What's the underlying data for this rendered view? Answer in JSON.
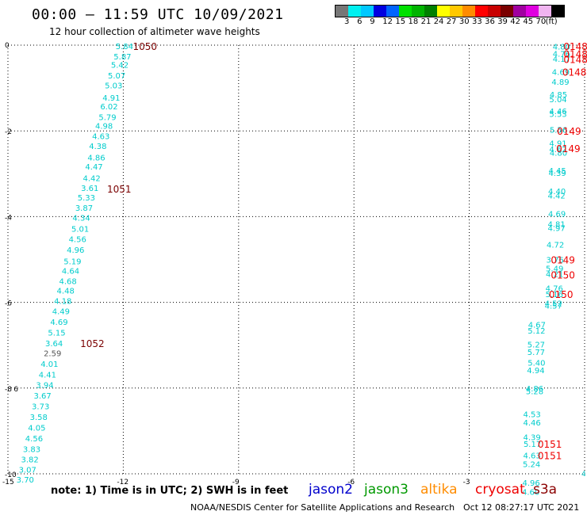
{
  "header": {
    "title": "00:00 – 11:59 UTC 10/09/2021",
    "subtitle": "12 hour collection of altimeter wave heights"
  },
  "scale": {
    "colors": [
      "#777777",
      "#00f0f0",
      "#00c8ff",
      "#0000e0",
      "#0064ff",
      "#00e000",
      "#00b400",
      "#008000",
      "#ffff00",
      "#ffc800",
      "#ff8c00",
      "#ff0000",
      "#c80000",
      "#7a0000",
      "#a000a0",
      "#e000e0",
      "#f0b4f0",
      "#000000"
    ],
    "labels": [
      "3",
      "6",
      "9",
      "12",
      "15",
      "18",
      "21",
      "24",
      "27",
      "30",
      "33",
      "36",
      "39",
      "42",
      "45",
      "70",
      "(ft)"
    ]
  },
  "note": "note:  1) Time is in UTC;  2) SWH is in feet",
  "legend": [
    {
      "name": "jason2",
      "color": "#0000cc"
    },
    {
      "name": "jason3",
      "color": "#009900"
    },
    {
      "name": "altika",
      "color": "#ff8c00"
    },
    {
      "name": "cryosat",
      "color": "#ee0000"
    },
    {
      "name": "s3a",
      "color": "#8b0000"
    }
  ],
  "footer": {
    "credit": "NOAA/NESDIS Center for Satellite Applications and Research",
    "timestamp": "Oct 12 08:27:17 UTC 2021"
  },
  "chart_data": {
    "type": "scatter",
    "xlim": [
      -15,
      0
    ],
    "ylim": [
      -10,
      0
    ],
    "xticks": [
      "-15",
      "-12",
      "-9",
      "-6",
      "-3"
    ],
    "yticks": [
      "0",
      "-2",
      "-4",
      "-6",
      "-8",
      "-10"
    ],
    "edge_label": "-3",
    "grid": true,
    "colors": {
      "wave": "#00cccc",
      "wave_low": "#555555",
      "time_s3a": "#7a0000",
      "time_cryosat": "#ee0000"
    },
    "track1": {
      "labels": [
        "5.84",
        "5.87",
        "5.42",
        "5.07",
        "5.03",
        "4.91",
        "6.02",
        "5.79",
        "4.98",
        "4.63",
        "4.38",
        "4.86",
        "4.47",
        "4.42",
        "3.61",
        "5.33",
        "3.87",
        "4.34",
        "5.01",
        "4.56",
        "4.96",
        "5.19",
        "4.64",
        "4.68",
        "4.48",
        "4.18",
        "4.49",
        "4.69",
        "5.15",
        "3.64",
        "2.59",
        "4.01",
        "4.41",
        "3.94",
        "3.67",
        "3.73",
        "3.58",
        "4.05",
        "4.56",
        "3.83",
        "3.82",
        "3.07",
        "3.70"
      ],
      "x": [
        -12.2,
        -12.25,
        -12.32,
        -12.4,
        -12.48,
        -12.54,
        -12.6,
        -12.64,
        -12.73,
        -12.81,
        -12.89,
        -12.93,
        -12.99,
        -13.05,
        -13.1,
        -13.19,
        -13.25,
        -13.32,
        -13.35,
        -13.42,
        -13.47,
        -13.55,
        -13.6,
        -13.67,
        -13.73,
        -13.8,
        -13.85,
        -13.9,
        -13.96,
        -14.03,
        -14.07,
        -14.15,
        -14.2,
        -14.27,
        -14.33,
        -14.38,
        -14.43,
        -14.48,
        -14.55,
        -14.61,
        -14.66,
        -14.72,
        -14.78
      ],
      "y": [
        -0.02,
        -0.26,
        -0.45,
        -0.7,
        -0.93,
        -1.22,
        -1.42,
        -1.67,
        -1.88,
        -2.12,
        -2.35,
        -2.62,
        -2.83,
        -3.1,
        -3.33,
        -3.55,
        -3.79,
        -4.02,
        -4.28,
        -4.52,
        -4.77,
        -5.04,
        -5.26,
        -5.5,
        -5.72,
        -5.96,
        -6.2,
        -6.45,
        -6.7,
        -6.95,
        -7.18,
        -7.43,
        -7.68,
        -7.92,
        -8.17,
        -8.42,
        -8.67,
        -8.92,
        -9.17,
        -9.42,
        -9.66,
        -9.9,
        -10.13
      ],
      "times": [
        {
          "label": "1050",
          "x": -11.75,
          "y": -0.02
        },
        {
          "label": "1051",
          "x": -12.42,
          "y": -3.35
        },
        {
          "label": "1052",
          "x": -13.12,
          "y": -6.95
        }
      ],
      "extra_label": "6",
      "extra_x": -14.85,
      "extra_y": -8.0
    },
    "track2": {
      "labels": [
        "4.80",
        "4.76",
        "4.17",
        "4.69",
        "4.89",
        "4.85",
        "5.04",
        "4.46",
        "5.53",
        "5.56",
        "4.91",
        "4.62",
        "4.80",
        "4.45",
        "4.39",
        "4.40",
        "4.42",
        "4.69",
        "4.81",
        "4.97",
        "4.72",
        "3.76",
        "5.49",
        "4.21",
        "4.76",
        "5.16",
        "4.52",
        "4.57",
        "4.67",
        "5.12",
        "5.27",
        "5.77",
        "5.40",
        "4.94",
        "4.86",
        "5.28",
        "4.53",
        "4.46",
        "4.39",
        "5.17",
        "4.63",
        "5.24",
        "4.96",
        "4.60"
      ],
      "x": [
        -0.83,
        -0.83,
        -0.83,
        -0.85,
        -0.86,
        -0.91,
        -0.92,
        -0.92,
        -0.92,
        -0.91,
        -0.92,
        -0.92,
        -0.91,
        -0.94,
        -0.94,
        -0.95,
        -0.96,
        -0.95,
        -0.96,
        -0.96,
        -0.99,
        -1.0,
        -1.01,
        -1.01,
        -1.02,
        -1.02,
        -1.04,
        -1.04,
        -1.47,
        -1.48,
        -1.49,
        -1.49,
        -1.48,
        -1.5,
        -1.53,
        -1.53,
        -1.6,
        -1.6,
        -1.6,
        -1.59,
        -1.6,
        -1.61,
        -1.62,
        -1.63
      ],
      "y": [
        -0.03,
        -0.19,
        -0.31,
        -0.62,
        -0.85,
        -1.15,
        -1.26,
        -1.53,
        -1.6,
        -1.97,
        -2.28,
        -2.42,
        -2.5,
        -2.92,
        -2.98,
        -3.4,
        -3.5,
        -3.93,
        -4.17,
        -4.26,
        -4.65,
        -5.0,
        -5.2,
        -5.33,
        -5.67,
        -5.8,
        -6.02,
        -6.07,
        -6.52,
        -6.65,
        -6.98,
        -7.15,
        -7.4,
        -7.58,
        -8.0,
        -8.07,
        -8.6,
        -8.8,
        -9.14,
        -9.3,
        -9.57,
        -9.77,
        -10.2,
        -10.42
      ],
      "times": [
        {
          "label": "0148",
          "x": -0.55,
          "y": -0.02
        },
        {
          "label": "0148",
          "x": -0.55,
          "y": -0.19
        },
        {
          "label": "0148",
          "x": -0.55,
          "y": -0.32
        },
        {
          "label": "0148",
          "x": -0.58,
          "y": -0.62
        },
        {
          "label": "0149",
          "x": -0.72,
          "y": -2.0
        },
        {
          "label": "0149",
          "x": -0.74,
          "y": -2.4
        },
        {
          "label": "0149",
          "x": -0.88,
          "y": -5.0
        },
        {
          "label": "0150",
          "x": -0.88,
          "y": -5.35
        },
        {
          "label": "0150",
          "x": -0.93,
          "y": -5.8
        },
        {
          "label": "0151",
          "x": -1.22,
          "y": -9.3
        },
        {
          "label": "0151",
          "x": -1.22,
          "y": -9.57
        }
      ]
    },
    "right_edge_label": "4"
  }
}
